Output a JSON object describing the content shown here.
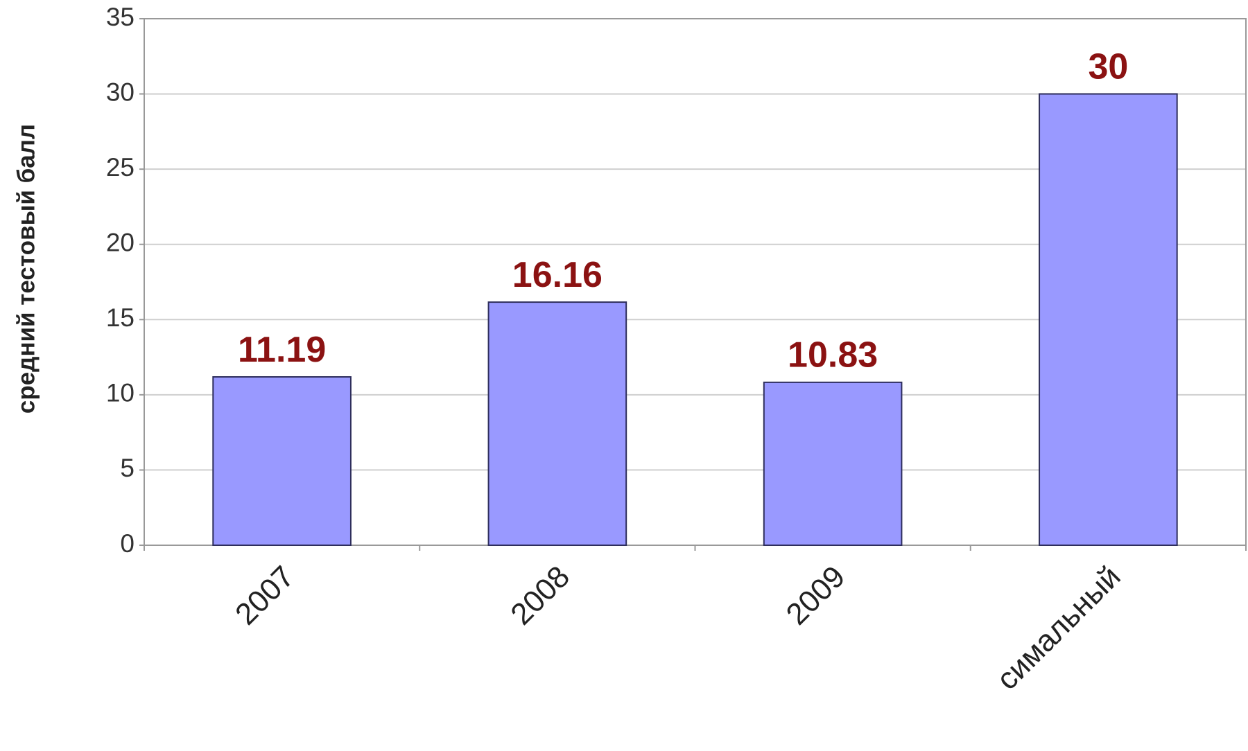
{
  "chart_data": {
    "type": "bar",
    "y_axis_label": "средний тестовый балл",
    "categories": [
      "2007",
      "2008",
      "2009",
      "симальный"
    ],
    "values": [
      11.19,
      16.16,
      10.83,
      30
    ],
    "color": "#9999ff",
    "label_color": "#8b1212",
    "ylim": [
      0,
      35
    ],
    "yticks": [
      0,
      5,
      10,
      15,
      20,
      25,
      30,
      35
    ],
    "grid": true
  }
}
